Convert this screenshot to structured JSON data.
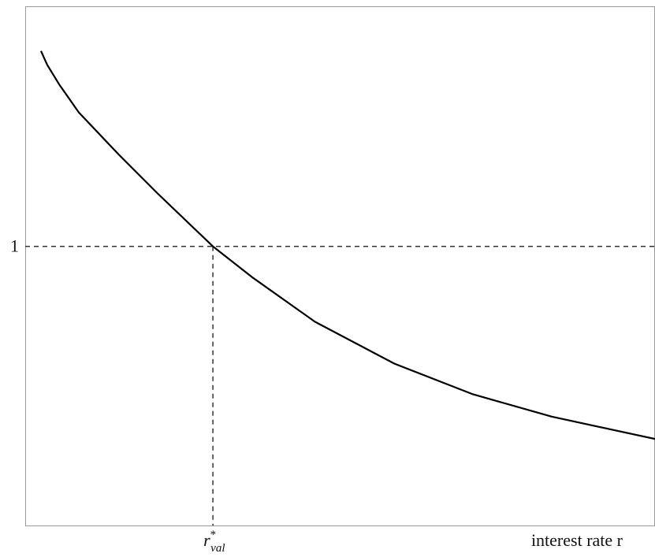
{
  "chart_data": {
    "type": "line",
    "xlabel": "interest rate r",
    "x": [
      0.025,
      0.035,
      0.054,
      0.085,
      0.148,
      0.21,
      0.298,
      0.36,
      0.46,
      0.586,
      0.711,
      0.836,
      1.0
    ],
    "series": [
      {
        "color": "#000000",
        "values": [
          1.7,
          1.65,
          1.58,
          1.48,
          1.33,
          1.19,
          1.0,
          0.89,
          0.73,
          0.58,
          0.47,
          0.39,
          0.31
        ]
      }
    ],
    "xlim": [
      0,
      1
    ],
    "ylim": [
      0,
      1.86
    ],
    "xticks": [
      {
        "value": 0.298,
        "label": "r",
        "superscript": "*",
        "subscript": "val"
      }
    ],
    "yticks": [
      1
    ]
  }
}
